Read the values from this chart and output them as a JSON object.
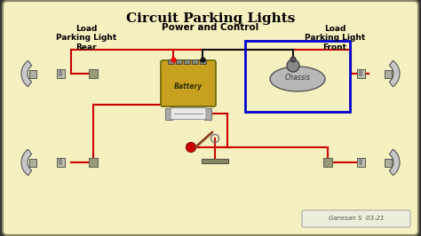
{
  "title": "Circuit Parking Lights",
  "bg_color": "#f5f0c0",
  "border_color": "#888866",
  "outer_bg": "#333333",
  "text_left": "Load\nParking Light\nRear",
  "text_center": "Power and Control",
  "text_right": "Load\nParking Light\nFront",
  "watermark": "Ganesan S  03-21",
  "battery_label": "Battery",
  "chassis_label": "Chassis",
  "wire_red": "#cc0000",
  "wire_black": "#111111",
  "wire_blue": "#0000cc",
  "battery_color": "#c8a020",
  "battery_border": "#666600",
  "fuse_color": "#c0c0c0",
  "chassis_color": "#b0b0b0",
  "lamp_color": "#cccccc",
  "connector_color": "#999977",
  "switch_red": "#cc0000",
  "ground_color": "#888866"
}
